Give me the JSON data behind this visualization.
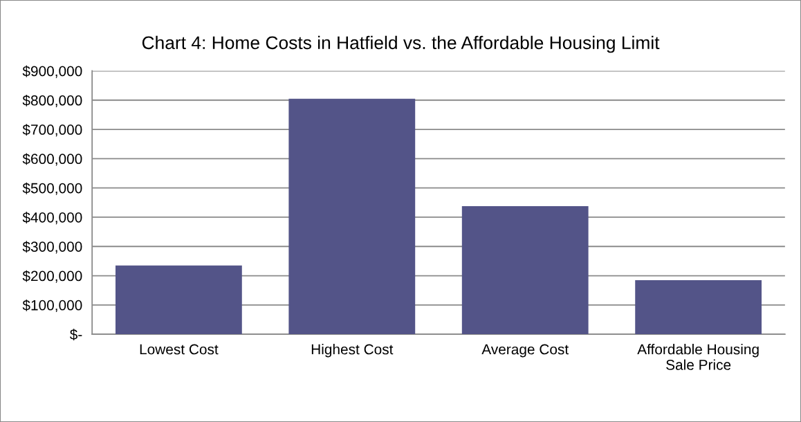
{
  "chart_data": {
    "type": "bar",
    "title": "Chart 4: Home Costs in Hatfield vs. the Affordable Housing Limit",
    "categories": [
      "Lowest Cost",
      "Highest Cost",
      "Average Cost",
      "Affordable Housing\nSale Price"
    ],
    "values": [
      235000,
      805000,
      438000,
      185000
    ],
    "color": "#535488",
    "ylim": [
      0,
      900000
    ],
    "yticks": [
      {
        "value": 0,
        "label": "$-"
      },
      {
        "value": 100000,
        "label": "$100,000"
      },
      {
        "value": 200000,
        "label": "$200,000"
      },
      {
        "value": 300000,
        "label": "$300,000"
      },
      {
        "value": 400000,
        "label": "$400,000"
      },
      {
        "value": 500000,
        "label": "$500,000"
      },
      {
        "value": 600000,
        "label": "$600,000"
      },
      {
        "value": 700000,
        "label": "$700,000"
      },
      {
        "value": 800000,
        "label": "$800,000"
      },
      {
        "value": 900000,
        "label": "$900,000"
      }
    ],
    "grid": "y"
  }
}
